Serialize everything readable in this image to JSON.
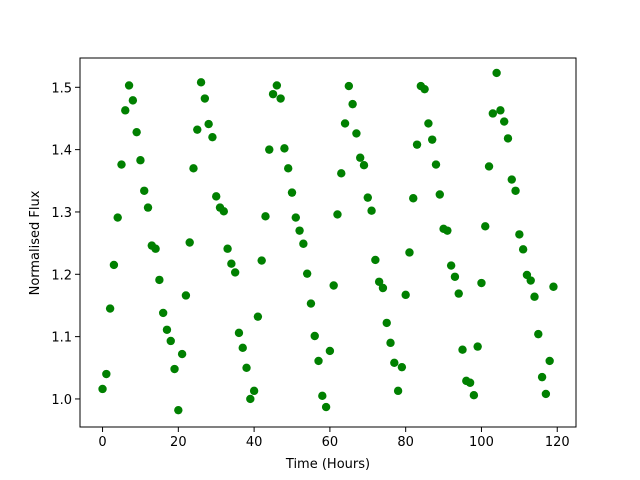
{
  "chart_data": {
    "type": "scatter",
    "xlabel": "Time (Hours)",
    "ylabel": "Normalised Flux",
    "color": "#008000",
    "x": [
      0,
      1,
      2,
      3,
      4,
      5,
      6,
      7,
      8,
      9,
      10,
      11,
      12,
      13,
      14,
      15,
      16,
      17,
      18,
      19,
      20,
      21,
      22,
      23,
      24,
      25,
      26,
      27,
      28,
      29,
      30,
      31,
      32,
      33,
      34,
      35,
      36,
      37,
      38,
      39,
      40,
      41,
      42,
      43,
      44,
      45,
      46,
      47,
      48,
      49,
      50,
      51,
      52,
      53,
      54,
      55,
      56,
      57,
      58,
      59,
      60,
      61,
      62,
      63,
      64,
      65,
      66,
      67,
      68,
      69,
      70,
      71,
      72,
      73,
      74,
      75,
      76,
      77,
      78,
      79,
      80,
      81,
      82,
      83,
      84,
      85,
      86,
      87,
      88,
      89,
      90,
      91,
      92,
      93,
      94,
      95,
      96,
      97,
      98,
      99,
      100,
      101,
      102,
      103,
      104,
      105,
      106,
      107,
      108,
      109,
      110,
      111,
      112,
      113,
      114,
      115,
      116,
      117,
      118,
      119
    ],
    "values": [
      1.016,
      1.04,
      1.145,
      1.215,
      1.291,
      1.376,
      1.463,
      1.503,
      1.479,
      1.428,
      1.383,
      1.334,
      1.307,
      1.246,
      1.241,
      1.191,
      1.138,
      1.111,
      1.093,
      1.048,
      0.982,
      1.072,
      1.166,
      1.251,
      1.37,
      1.432,
      1.508,
      1.482,
      1.441,
      1.42,
      1.325,
      1.307,
      1.301,
      1.241,
      1.217,
      1.203,
      1.106,
      1.082,
      1.05,
      1.0,
      1.013,
      1.132,
      1.222,
      1.293,
      1.4,
      1.489,
      1.503,
      1.482,
      1.402,
      1.37,
      1.331,
      1.291,
      1.27,
      1.249,
      1.201,
      1.153,
      1.101,
      1.061,
      1.005,
      0.987,
      1.077,
      1.182,
      1.296,
      1.362,
      1.442,
      1.502,
      1.473,
      1.426,
      1.387,
      1.375,
      1.323,
      1.302,
      1.223,
      1.188,
      1.178,
      1.122,
      1.09,
      1.058,
      1.013,
      1.051,
      1.167,
      1.235,
      1.322,
      1.408,
      1.502,
      1.497,
      1.442,
      1.416,
      1.376,
      1.328,
      1.273,
      1.27,
      1.214,
      1.196,
      1.169,
      1.079,
      1.029,
      1.026,
      1.006,
      1.084,
      1.186,
      1.277,
      1.373,
      1.458,
      1.523,
      1.463,
      1.445,
      1.418,
      1.352,
      1.334,
      1.264,
      1.24,
      1.199,
      1.19,
      1.164,
      1.104,
      1.035,
      1.008,
      1.061,
      1.18
    ],
    "xlim": [
      -5.95,
      124.95
    ],
    "ylim": [
      0.955,
      1.547
    ],
    "xticks": [
      0,
      20,
      40,
      60,
      80,
      100,
      120
    ],
    "yticks": [
      {
        "value": 1,
        "label": "1.0"
      },
      1.1,
      1.2,
      1.3,
      1.4,
      1.5
    ]
  }
}
